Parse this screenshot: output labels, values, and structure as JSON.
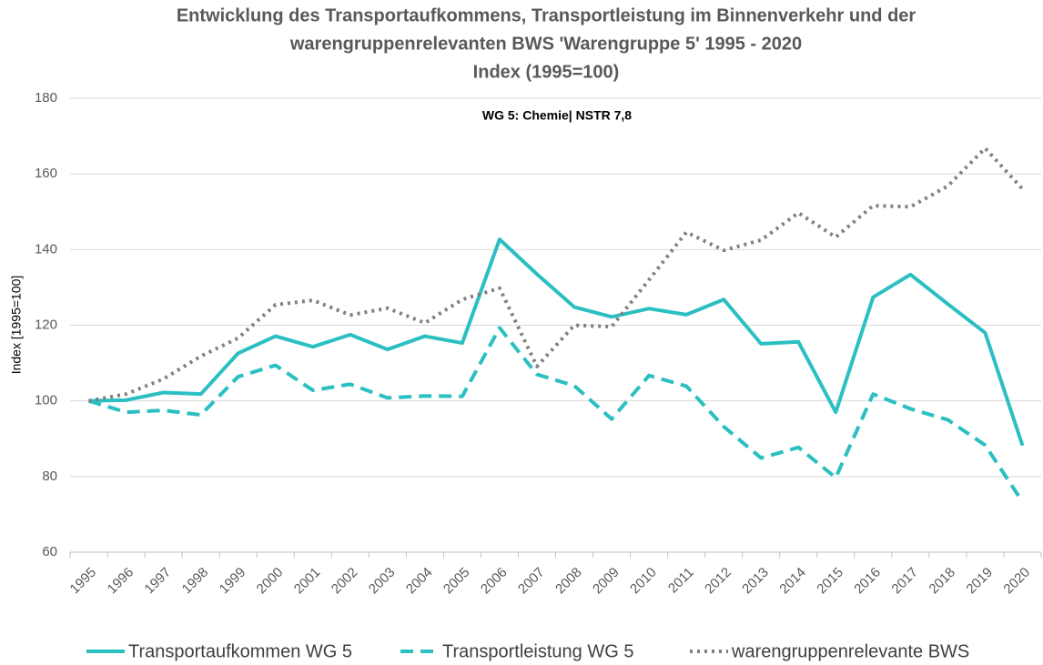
{
  "chart_data": {
    "type": "line",
    "title": [
      "Entwicklung des Transportaufkommens, Transportleistung im Binnenverkehr und der",
      "warengruppenrelevanten BWS 'Warengruppe 5'  1995 - 2020",
      "Index (1995=100)"
    ],
    "subtitle": "WG 5: Chemie| NSTR 7,8",
    "y_label": "Index [1995=100]",
    "categories": [
      "1995",
      "1996",
      "1997",
      "1998",
      "1999",
      "2000",
      "2001",
      "2002",
      "2003",
      "2004",
      "2005",
      "2006",
      "2007",
      "2008",
      "2009",
      "2010",
      "2011",
      "2012",
      "2013",
      "2014",
      "2015",
      "2016",
      "2017",
      "2018",
      "2019",
      "2020"
    ],
    "series": [
      {
        "name": "Transportaufkommen WG 5",
        "color": "#2bbfc2",
        "dash": "solid",
        "values": [
          100,
          100.2,
          102.2,
          101.8,
          112.6,
          117.1,
          114.3,
          117.5,
          113.6,
          117.1,
          115.3,
          142.7,
          133.5,
          124.8,
          122.2,
          124.4,
          122.8,
          126.8,
          115.1,
          115.6,
          97.0,
          127.4,
          133.4,
          125.6,
          118.0,
          88.2
        ]
      },
      {
        "name": "Transportleistung WG 5",
        "color": "#2bbfc2",
        "dash": "dashed",
        "values": [
          100,
          97.0,
          97.5,
          96.3,
          106.4,
          109.4,
          102.8,
          104.4,
          100.8,
          101.3,
          101.2,
          119.3,
          107.0,
          104.0,
          95.2,
          106.7,
          103.9,
          93.2,
          84.9,
          87.7,
          79.7,
          101.8,
          97.9,
          95.0,
          88.3,
          73.3
        ]
      },
      {
        "name": "warengruppenrelevante BWS",
        "color": "#808080",
        "dash": "dotted",
        "values": [
          100,
          101.8,
          105.8,
          111.8,
          116.6,
          125.4,
          126.6,
          122.7,
          124.5,
          120.6,
          126.8,
          129.8,
          109.1,
          120.0,
          119.6,
          132.0,
          144.6,
          139.8,
          142.5,
          149.7,
          143.3,
          151.6,
          151.3,
          156.8,
          166.8,
          156.0
        ]
      }
    ],
    "ylim": [
      60,
      180
    ],
    "yticks": [
      60,
      80,
      100,
      120,
      140,
      160,
      180
    ],
    "grid": true,
    "legend": "bottom"
  }
}
